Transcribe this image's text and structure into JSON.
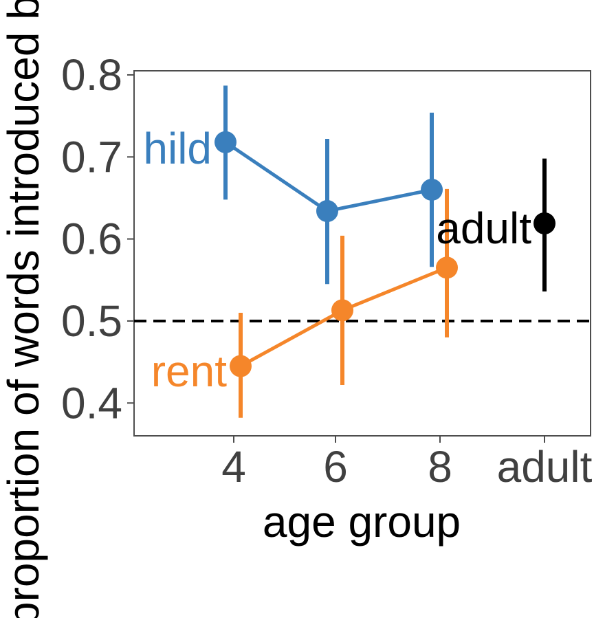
{
  "chart_data": {
    "type": "line",
    "title": "",
    "xlabel": "age group",
    "ylabel": "proportion of words introduced by",
    "categories": [
      "4",
      "6",
      "8",
      "adult"
    ],
    "ylim": [
      0.36,
      0.805
    ],
    "yticks": [
      0.4,
      0.5,
      0.6,
      0.7,
      0.8
    ],
    "ytick_labels": [
      "0.4",
      "0.5",
      "0.6",
      "0.7",
      "0.8"
    ],
    "grid": false,
    "legend": "none",
    "reference_line": {
      "y": 0.5,
      "style": "dashed",
      "color": "#000000"
    },
    "series": [
      {
        "name": "child",
        "label_text": "hild",
        "color": "#3a7fbd",
        "points": [
          {
            "x": "4",
            "y": 0.718,
            "low": 0.648,
            "high": 0.787
          },
          {
            "x": "6",
            "y": 0.634,
            "low": 0.545,
            "high": 0.722
          },
          {
            "x": "8",
            "y": 0.66,
            "low": 0.566,
            "high": 0.754
          }
        ]
      },
      {
        "name": "parent",
        "label_text": "rent",
        "color": "#f5862a",
        "points": [
          {
            "x": "4",
            "y": 0.445,
            "low": 0.382,
            "high": 0.51
          },
          {
            "x": "6",
            "y": 0.513,
            "low": 0.422,
            "high": 0.604
          },
          {
            "x": "8",
            "y": 0.565,
            "low": 0.48,
            "high": 0.661
          }
        ]
      },
      {
        "name": "adult",
        "label_text": "adult",
        "color": "#000000",
        "points": [
          {
            "x": "adult",
            "y": 0.619,
            "low": 0.536,
            "high": 0.698
          }
        ]
      }
    ]
  }
}
